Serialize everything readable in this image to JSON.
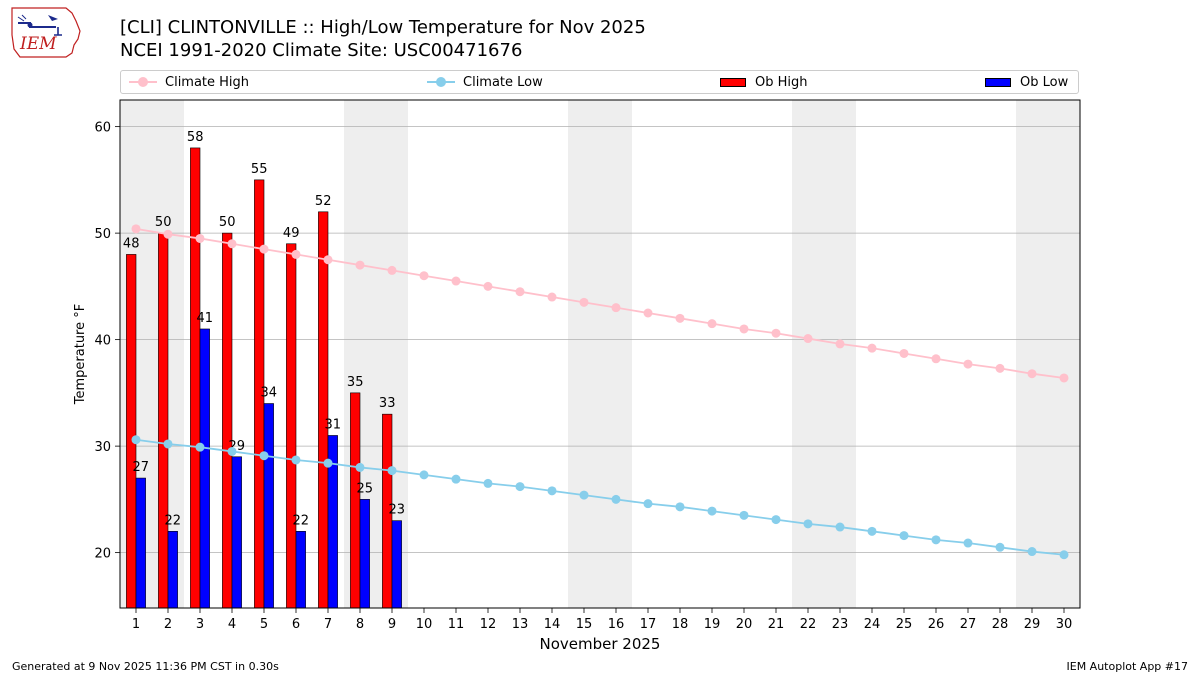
{
  "header": {
    "title_line1": "[CLI] CLINTONVILLE :: High/Low Temperature for Nov 2025",
    "title_line2": "NCEI 1991-2020 Climate Site: USC00471676",
    "logo_text": "IEM"
  },
  "footer": {
    "generated": "Generated at 9 Nov 2025 11:36 PM CST in 0.30s",
    "app": "IEM Autoplot App #17"
  },
  "legend": {
    "climate_high": "Climate High",
    "climate_low": "Climate Low",
    "ob_high": "Ob High",
    "ob_low": "Ob Low",
    "placement": "top, above plot"
  },
  "colors": {
    "climate_high": "#ffc0cb",
    "climate_low": "#87ceeb",
    "ob_high": "#ff0000",
    "ob_low": "#0000ff",
    "weekend_band": "#eeeeee",
    "grid": "#b0b0b0"
  },
  "chart_data": {
    "type": "bar",
    "xlabel": "November 2025",
    "ylabel": "Temperature °F",
    "xlim": [
      0.5,
      30.5
    ],
    "ylim": [
      14.8,
      62.5
    ],
    "yticks": [
      20,
      30,
      40,
      50,
      60
    ],
    "grid": "horizontal",
    "days": [
      1,
      2,
      3,
      4,
      5,
      6,
      7,
      8,
      9,
      10,
      11,
      12,
      13,
      14,
      15,
      16,
      17,
      18,
      19,
      20,
      21,
      22,
      23,
      24,
      25,
      26,
      27,
      28,
      29,
      30
    ],
    "shaded_days": [
      [
        1,
        2
      ],
      [
        8,
        9
      ],
      [
        15,
        16
      ],
      [
        22,
        23
      ],
      [
        29,
        30
      ]
    ],
    "ob_high": [
      48,
      50,
      58,
      50,
      55,
      49,
      52,
      35,
      33
    ],
    "ob_low": [
      27,
      22,
      41,
      29,
      34,
      22,
      31,
      25,
      23
    ],
    "climate_high": [
      50.4,
      49.9,
      49.5,
      49.0,
      48.5,
      48.0,
      47.5,
      47.0,
      46.5,
      46.0,
      45.5,
      45.0,
      44.5,
      44.0,
      43.5,
      43.0,
      42.5,
      42.0,
      41.5,
      41.0,
      40.6,
      40.1,
      39.6,
      39.2,
      38.7,
      38.2,
      37.7,
      37.3,
      36.8,
      36.4
    ],
    "climate_low": [
      30.6,
      30.2,
      29.9,
      29.5,
      29.1,
      28.7,
      28.4,
      28.0,
      27.7,
      27.3,
      26.9,
      26.5,
      26.2,
      25.8,
      25.4,
      25.0,
      24.6,
      24.3,
      23.9,
      23.5,
      23.1,
      22.7,
      22.4,
      22.0,
      21.6,
      21.2,
      20.9,
      20.5,
      20.1,
      19.8
    ]
  }
}
